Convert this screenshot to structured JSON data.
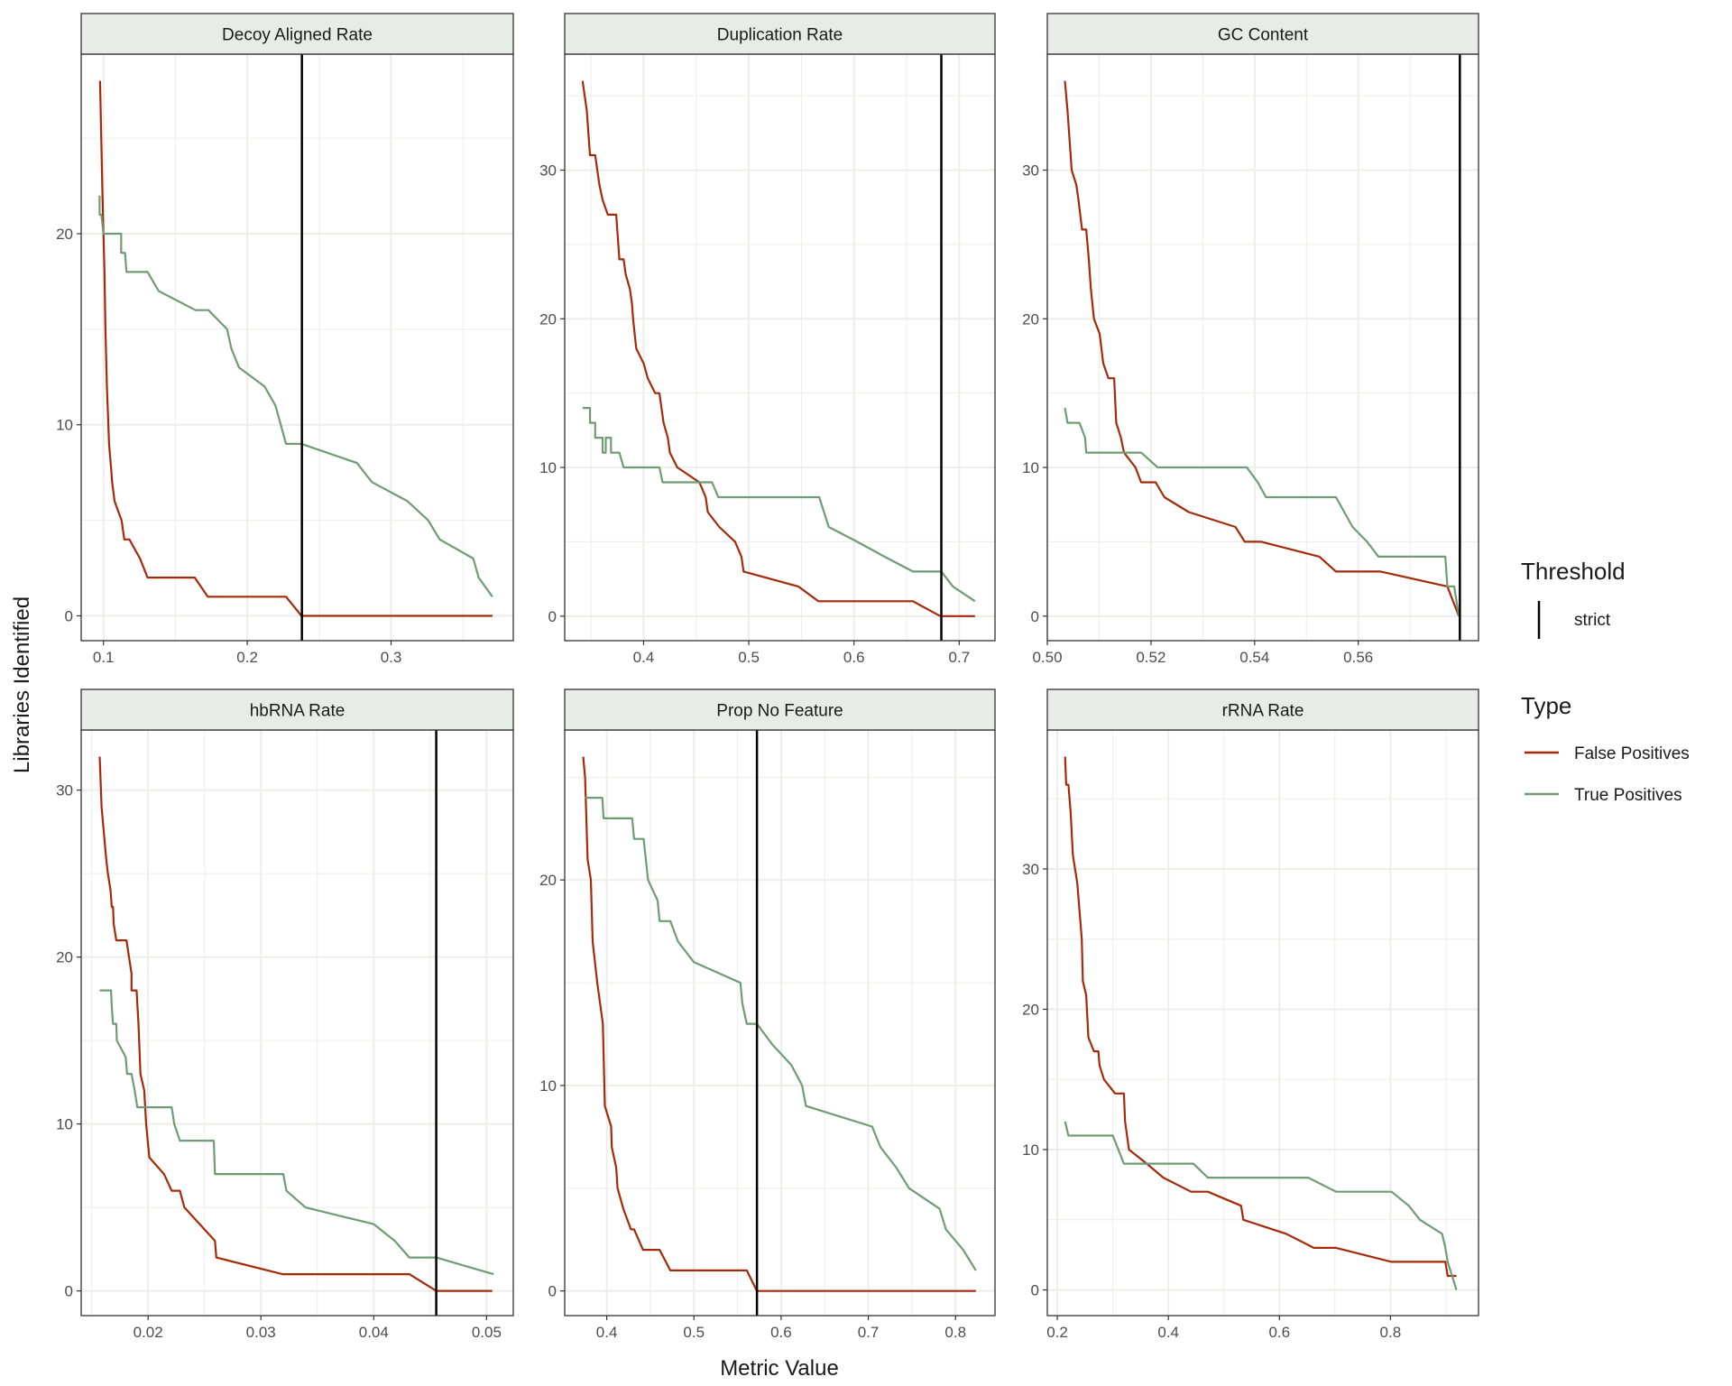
{
  "chart_data": {
    "type": "line",
    "ylabel": "Libraries Identified",
    "xlabel": "Metric Value",
    "colors": {
      "False Positives": "#A52A0A",
      "True Positives": "#6F9C74",
      "threshold": "#000000",
      "strip": "#E8ECE7",
      "grid": "#EBEEE9"
    },
    "legend": {
      "placement": "right",
      "threshold_title": "Threshold",
      "threshold_items": [
        "strict"
      ],
      "type_title": "Type",
      "type_items": [
        "False Positives",
        "True Positives"
      ]
    },
    "panels": [
      {
        "title": "Decoy Aligned Rate",
        "xlim": [
          0.0845,
          0.385
        ],
        "ylim": [
          -1.3,
          29.4
        ],
        "xticks": [
          "0.1",
          "0.2",
          "0.3"
        ],
        "yticks": [
          "0",
          "10",
          "20"
        ],
        "threshold": 0.238,
        "series": [
          {
            "name": "False Positives",
            "x": [
              0.0976,
              0.0993,
              0.1,
              0.1007,
              0.1014,
              0.1024,
              0.1039,
              0.1053,
              0.106,
              0.1077,
              0.1116,
              0.1126,
              0.1145,
              0.118,
              0.1254,
              0.1307,
              0.1635,
              0.1725,
              0.227,
              0.2377,
              0.3705
            ],
            "y": [
              28,
              22,
              20,
              18,
              15,
              12,
              9,
              7.7,
              7,
              6,
              5.2,
              5,
              4,
              4,
              3,
              2,
              2,
              1,
              1,
              0,
              0
            ]
          },
          {
            "name": "True Positives",
            "x": [
              0.0973,
              0.0973,
              0.0985,
              0.1,
              0.1123,
              0.1123,
              0.115,
              0.116,
              0.1307,
              0.1384,
              0.164,
              0.173,
              0.186,
              0.1889,
              0.1942,
              0.2121,
              0.2196,
              0.227,
              0.2377,
              0.2763,
              0.2867,
              0.3114,
              0.3258,
              0.3338,
              0.3572,
              0.3609,
              0.3705
            ],
            "y": [
              22,
              21,
              21,
              20,
              20,
              19,
              19,
              18,
              18,
              17,
              16,
              16,
              15,
              14,
              13,
              12,
              11,
              9,
              9,
              8,
              7,
              6,
              5,
              4,
              3,
              2,
              1
            ]
          }
        ]
      },
      {
        "title": "Duplication Rate",
        "xlim": [
          0.325,
          0.734
        ],
        "ylim": [
          -1.65,
          37.8
        ],
        "xticks": [
          "0.4",
          "0.5",
          "0.6",
          "0.7"
        ],
        "yticks": [
          "0",
          "10",
          "20",
          "30"
        ],
        "threshold": 0.683,
        "series": [
          {
            "name": "False Positives",
            "x": [
              0.342,
              0.346,
              0.349,
              0.354,
              0.358,
              0.361,
              0.366,
              0.374,
              0.377,
              0.381,
              0.383,
              0.387,
              0.389,
              0.39,
              0.393,
              0.4,
              0.404,
              0.411,
              0.415,
              0.419,
              0.423,
              0.425,
              0.432,
              0.453,
              0.459,
              0.461,
              0.472,
              0.487,
              0.493,
              0.495,
              0.547,
              0.566,
              0.656,
              0.682,
              0.715
            ],
            "y": [
              36,
              34,
              31,
              31,
              29,
              28,
              27,
              27,
              24,
              24,
              23,
              22,
              21,
              20,
              18,
              17,
              16,
              15,
              15,
              13,
              12,
              11,
              10,
              9,
              8,
              7,
              6,
              5,
              4,
              3,
              2,
              1,
              1,
              0,
              0
            ]
          },
          {
            "name": "True Positives",
            "x": [
              0.342,
              0.349,
              0.349,
              0.354,
              0.354,
              0.361,
              0.361,
              0.364,
              0.364,
              0.369,
              0.369,
              0.374,
              0.377,
              0.381,
              0.415,
              0.418,
              0.465,
              0.471,
              0.567,
              0.576,
              0.603,
              0.629,
              0.656,
              0.683,
              0.694,
              0.715
            ],
            "y": [
              14,
              14,
              13,
              13,
              12,
              12,
              11,
              11,
              12,
              12,
              11,
              11,
              11,
              10,
              10,
              9,
              9,
              8,
              8,
              6,
              5,
              4,
              3,
              3,
              2,
              1
            ]
          }
        ]
      },
      {
        "title": "GC Content",
        "xlim": [
          0.5,
          0.5832
        ],
        "ylim": [
          -1.65,
          37.8
        ],
        "xticks": [
          "0.50",
          "0.52",
          "0.54",
          "0.56"
        ],
        "yticks": [
          "0",
          "10",
          "20",
          "30"
        ],
        "threshold": 0.5796,
        "series": [
          {
            "name": "False Positives",
            "x": [
              0.5034,
              0.5039,
              0.5043,
              0.5047,
              0.5056,
              0.506,
              0.5067,
              0.5075,
              0.508,
              0.5084,
              0.509,
              0.5101,
              0.5108,
              0.5118,
              0.5129,
              0.5133,
              0.5142,
              0.5148,
              0.517,
              0.5181,
              0.5209,
              0.5226,
              0.5273,
              0.5363,
              0.5381,
              0.5413,
              0.5525,
              0.5557,
              0.5643,
              0.5772,
              0.5783,
              0.5794
            ],
            "y": [
              36,
              34,
              32,
              30,
              29,
              28,
              26,
              26,
              24,
              22,
              20,
              19,
              17,
              16,
              16,
              13,
              12,
              11,
              10,
              9,
              9,
              8,
              7,
              6,
              5,
              5,
              4,
              3,
              3,
              2,
              1,
              0
            ]
          },
          {
            "name": "True Positives",
            "x": [
              0.5034,
              0.5039,
              0.5062,
              0.5073,
              0.5075,
              0.5181,
              0.5213,
              0.5385,
              0.5406,
              0.5422,
              0.5557,
              0.5589,
              0.5617,
              0.5639,
              0.5768,
              0.5772,
              0.5785,
              0.5794
            ],
            "y": [
              14,
              13,
              13,
              12,
              11,
              11,
              10,
              10,
              9,
              8,
              8,
              6,
              5,
              4,
              4,
              2,
              2,
              0
            ]
          }
        ]
      },
      {
        "title": "hbRNA Rate",
        "xlim": [
          0.01407,
          0.05237
        ],
        "ylim": [
          -1.48,
          33.6
        ],
        "xticks": [
          "0.02",
          "0.03",
          "0.04",
          "0.05"
        ],
        "yticks": [
          "0",
          "10",
          "20",
          "30"
        ],
        "threshold": 0.04554,
        "series": [
          {
            "name": "False Positives",
            "x": [
              0.01571,
              0.01588,
              0.01627,
              0.01644,
              0.01667,
              0.01678,
              0.01689,
              0.01695,
              0.01718,
              0.01808,
              0.01853,
              0.01853,
              0.01898,
              0.01915,
              0.01932,
              0.01966,
              0.01983,
              0.02011,
              0.02141,
              0.02209,
              0.02282,
              0.02322,
              0.02593,
              0.02605,
              0.03192,
              0.04316,
              0.04554,
              0.05051
            ],
            "y": [
              32,
              29,
              26,
              25,
              24,
              23,
              23,
              22,
              21,
              21,
              19,
              18,
              18,
              16,
              13,
              12,
              10,
              8,
              7,
              6,
              6,
              5,
              3,
              2,
              1,
              1,
              0,
              0
            ]
          },
          {
            "name": "True Positives",
            "x": [
              0.01571,
              0.01672,
              0.01678,
              0.01689,
              0.01718,
              0.01723,
              0.01802,
              0.01814,
              0.01853,
              0.01881,
              0.01904,
              0.02209,
              0.02232,
              0.02282,
              0.02582,
              0.02593,
              0.03198,
              0.03226,
              0.03395,
              0.04,
              0.04186,
              0.04316,
              0.04554,
              0.05062
            ],
            "y": [
              18,
              18,
              17,
              16,
              16,
              15,
              14,
              13,
              13,
              12,
              11,
              11,
              10,
              9,
              9,
              7,
              7,
              6,
              5,
              4,
              3,
              2,
              2,
              1
            ]
          }
        ]
      },
      {
        "title": "Prop No Feature",
        "xlim": [
          0.3518,
          0.8453
        ],
        "ylim": [
          -1.2,
          27.3
        ],
        "xticks": [
          "0.4",
          "0.5",
          "0.6",
          "0.7",
          "0.8"
        ],
        "yticks": [
          "0",
          "10",
          "20"
        ],
        "threshold": 0.5723,
        "series": [
          {
            "name": "False Positives",
            "x": [
              0.373,
              0.3752,
              0.3781,
              0.3818,
              0.3839,
              0.3891,
              0.3956,
              0.3978,
              0.4051,
              0.4058,
              0.4109,
              0.4124,
              0.419,
              0.4277,
              0.4314,
              0.4416,
              0.4606,
              0.473,
              0.5606,
              0.5723,
              0.8234
            ],
            "y": [
              26,
              25,
              21,
              20,
              17,
              15,
              13,
              9,
              8,
              7,
              6,
              5,
              4,
              3,
              3,
              2,
              2,
              1,
              1,
              0,
              0
            ]
          },
          {
            "name": "True Positives",
            "x": [
              0.3752,
              0.3949,
              0.3964,
              0.4292,
              0.4314,
              0.4423,
              0.4474,
              0.4584,
              0.4606,
              0.473,
              0.4818,
              0.5,
              0.5533,
              0.5555,
              0.5606,
              0.5723,
              0.5898,
              0.6117,
              0.6241,
              0.6285,
              0.7044,
              0.7139,
              0.7321,
              0.7467,
              0.7818,
              0.789,
              0.8088,
              0.8234
            ],
            "y": [
              24,
              24,
              23,
              23,
              22,
              22,
              20,
              19,
              18,
              18,
              17,
              16,
              15,
              14,
              13,
              13,
              12,
              11,
              10,
              9,
              8,
              7,
              6,
              5,
              4,
              3,
              2,
              1
            ]
          }
        ]
      },
      {
        "title": "rRNA Rate",
        "xlim": [
          0.182,
          0.9586
        ],
        "ylim": [
          -1.83,
          39.9
        ],
        "xticks": [
          "0.2",
          "0.4",
          "0.6",
          "0.8"
        ],
        "yticks": [
          "0",
          "10",
          "20",
          "30"
        ],
        "threshold": null,
        "series": [
          {
            "name": "False Positives",
            "x": [
              0.214,
              0.216,
              0.22,
              0.224,
              0.228,
              0.236,
              0.24,
              0.244,
              0.246,
              0.252,
              0.256,
              0.266,
              0.274,
              0.276,
              0.284,
              0.304,
              0.32,
              0.322,
              0.329,
              0.361,
              0.391,
              0.441,
              0.471,
              0.531,
              0.535,
              0.612,
              0.662,
              0.702,
              0.802,
              0.899,
              0.903,
              0.919
            ],
            "y": [
              38,
              36,
              36,
              34,
              31,
              29,
              27,
              25,
              22,
              21,
              18,
              17,
              17,
              16,
              15,
              14,
              14,
              12,
              10,
              9,
              8,
              7,
              7,
              6,
              5,
              4,
              3,
              3,
              2,
              2,
              1,
              1
            ]
          },
          {
            "name": "True Positives",
            "x": [
              0.214,
              0.22,
              0.3,
              0.32,
              0.445,
              0.471,
              0.652,
              0.702,
              0.802,
              0.833,
              0.853,
              0.893,
              0.899,
              0.903,
              0.919
            ],
            "y": [
              12,
              11,
              11,
              9,
              9,
              8,
              8,
              7,
              7,
              6,
              5,
              4,
              3,
              2,
              0
            ]
          }
        ]
      }
    ]
  }
}
